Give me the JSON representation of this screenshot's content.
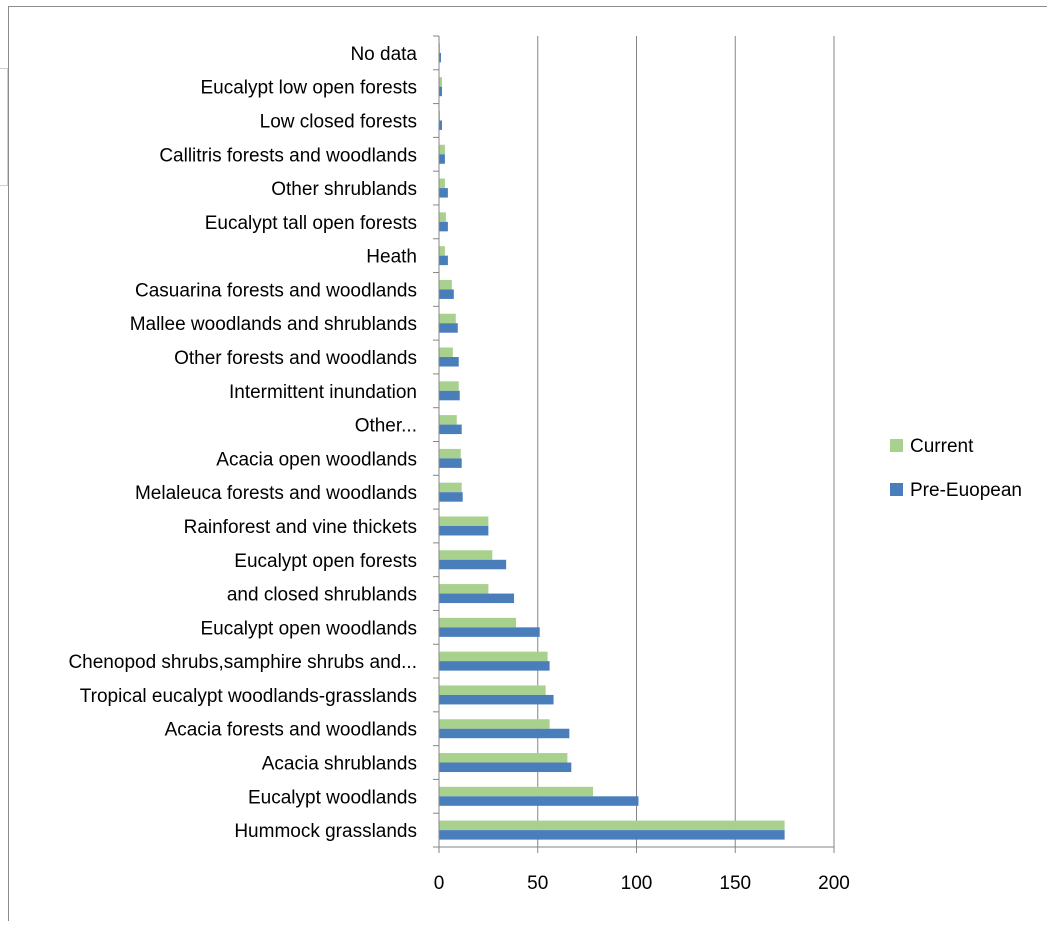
{
  "chart_data": {
    "type": "bar",
    "orientation": "horizontal",
    "categories": [
      "Hummock grasslands",
      "Eucalypt woodlands",
      "Acacia shrublands",
      "Acacia forests and woodlands",
      "Tropical eucalypt woodlands-grasslands",
      "Chenopod shrubs,samphire shrubs and...",
      "Eucalypt open woodlands",
      "and closed shrublands",
      "Eucalypt open forests",
      "Rainforest and vine thickets",
      "Melaleuca forests and woodlands",
      "Acacia open woodlands",
      "Other...",
      "Intermittent inundation",
      "Other forests and woodlands",
      "Mallee woodlands and shrublands",
      "Casuarina forests and woodlands",
      "Heath",
      "Eucalypt tall open forests",
      "Other shrublands",
      "Callitris forests and woodlands",
      "Low closed forests",
      "Eucalypt low open forests",
      "No data"
    ],
    "series": [
      {
        "name": "Current",
        "color": "#a9d18e",
        "values": [
          175,
          78,
          65,
          56,
          54,
          55,
          39,
          25,
          27,
          25,
          11.5,
          11,
          9,
          10,
          7,
          8.5,
          6.5,
          3,
          3.5,
          3,
          3,
          0.5,
          1.5,
          0.5
        ]
      },
      {
        "name": "Pre-Euopean",
        "color": "#4a7ebb",
        "values": [
          175,
          101,
          67,
          66,
          58,
          56,
          51,
          38,
          34,
          25,
          12,
          11.5,
          11.5,
          10.5,
          10,
          9.5,
          7.5,
          4.5,
          4.5,
          4.5,
          3,
          1.5,
          1.5,
          1
        ]
      }
    ],
    "xlim": [
      0,
      200
    ],
    "xticks": [
      "0",
      "50",
      "100",
      "150",
      "200"
    ],
    "grid": true,
    "legend": "right"
  }
}
